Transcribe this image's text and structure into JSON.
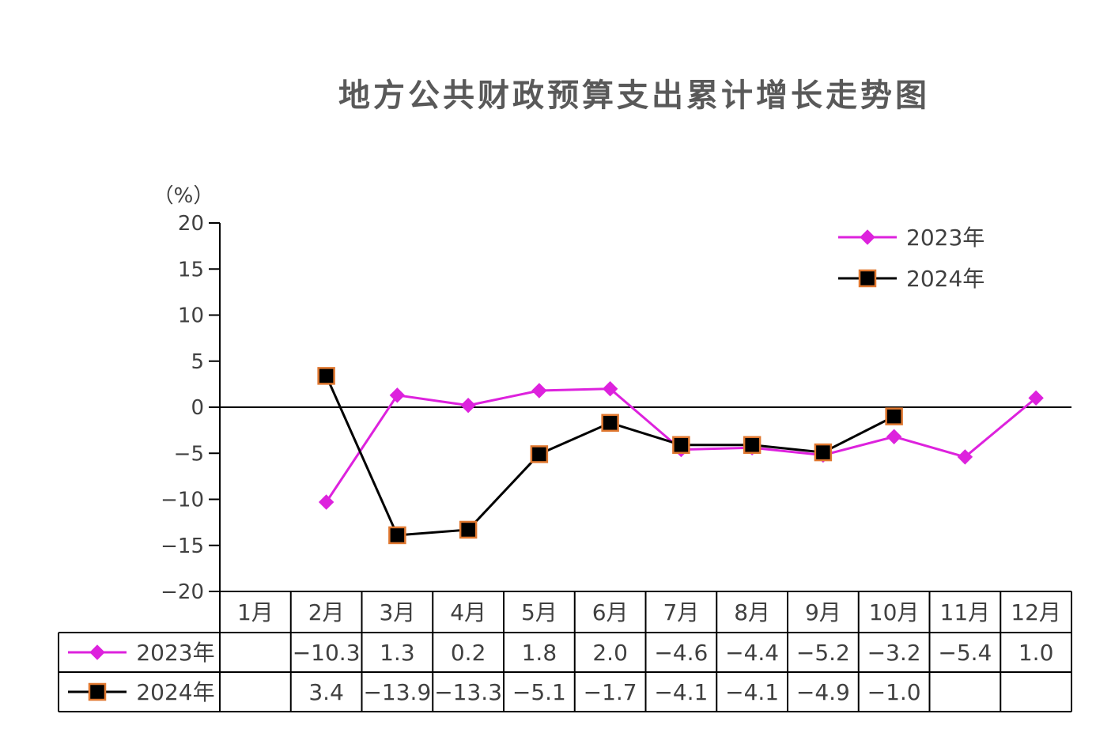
{
  "chart_data": {
    "type": "line",
    "title": "地方公共财政预算支出累计增长走势图",
    "unit": "（%）",
    "categories": [
      "1月",
      "2月",
      "3月",
      "4月",
      "5月",
      "6月",
      "7月",
      "8月",
      "9月",
      "10月",
      "11月",
      "12月"
    ],
    "ylim": [
      -20,
      20
    ],
    "yticks": [
      20,
      15,
      10,
      5,
      0,
      -5,
      -10,
      -15,
      -20
    ],
    "ytick_labels": [
      "20",
      "15",
      "10",
      "5",
      "0",
      "−5",
      "−10",
      "−15",
      "−20"
    ],
    "grid": false,
    "legend_position": "top-right",
    "series": [
      {
        "name": "2023年",
        "color": "#DD22DD",
        "marker": "diamond",
        "values": [
          null,
          -10.3,
          1.3,
          0.2,
          1.8,
          2.0,
          -4.6,
          -4.4,
          -5.2,
          -3.2,
          -5.4,
          1.0
        ],
        "labels": [
          "",
          "−10.3",
          "1.3",
          "0.2",
          "1.8",
          "2.0",
          "−4.6",
          "−4.4",
          "−5.2",
          "−3.2",
          "−5.4",
          "1.0"
        ]
      },
      {
        "name": "2024年",
        "color": "#000000",
        "marker": "square",
        "marker_edge_color": "#E07830",
        "values": [
          null,
          3.4,
          -13.9,
          -13.3,
          -5.1,
          -1.7,
          -4.1,
          -4.1,
          -4.9,
          -1.0,
          null,
          null
        ],
        "labels": [
          "",
          "3.4",
          "−13.9",
          "−13.3",
          "−5.1",
          "−1.7",
          "−4.1",
          "−4.1",
          "−4.9",
          "−1.0",
          "",
          ""
        ]
      }
    ]
  }
}
